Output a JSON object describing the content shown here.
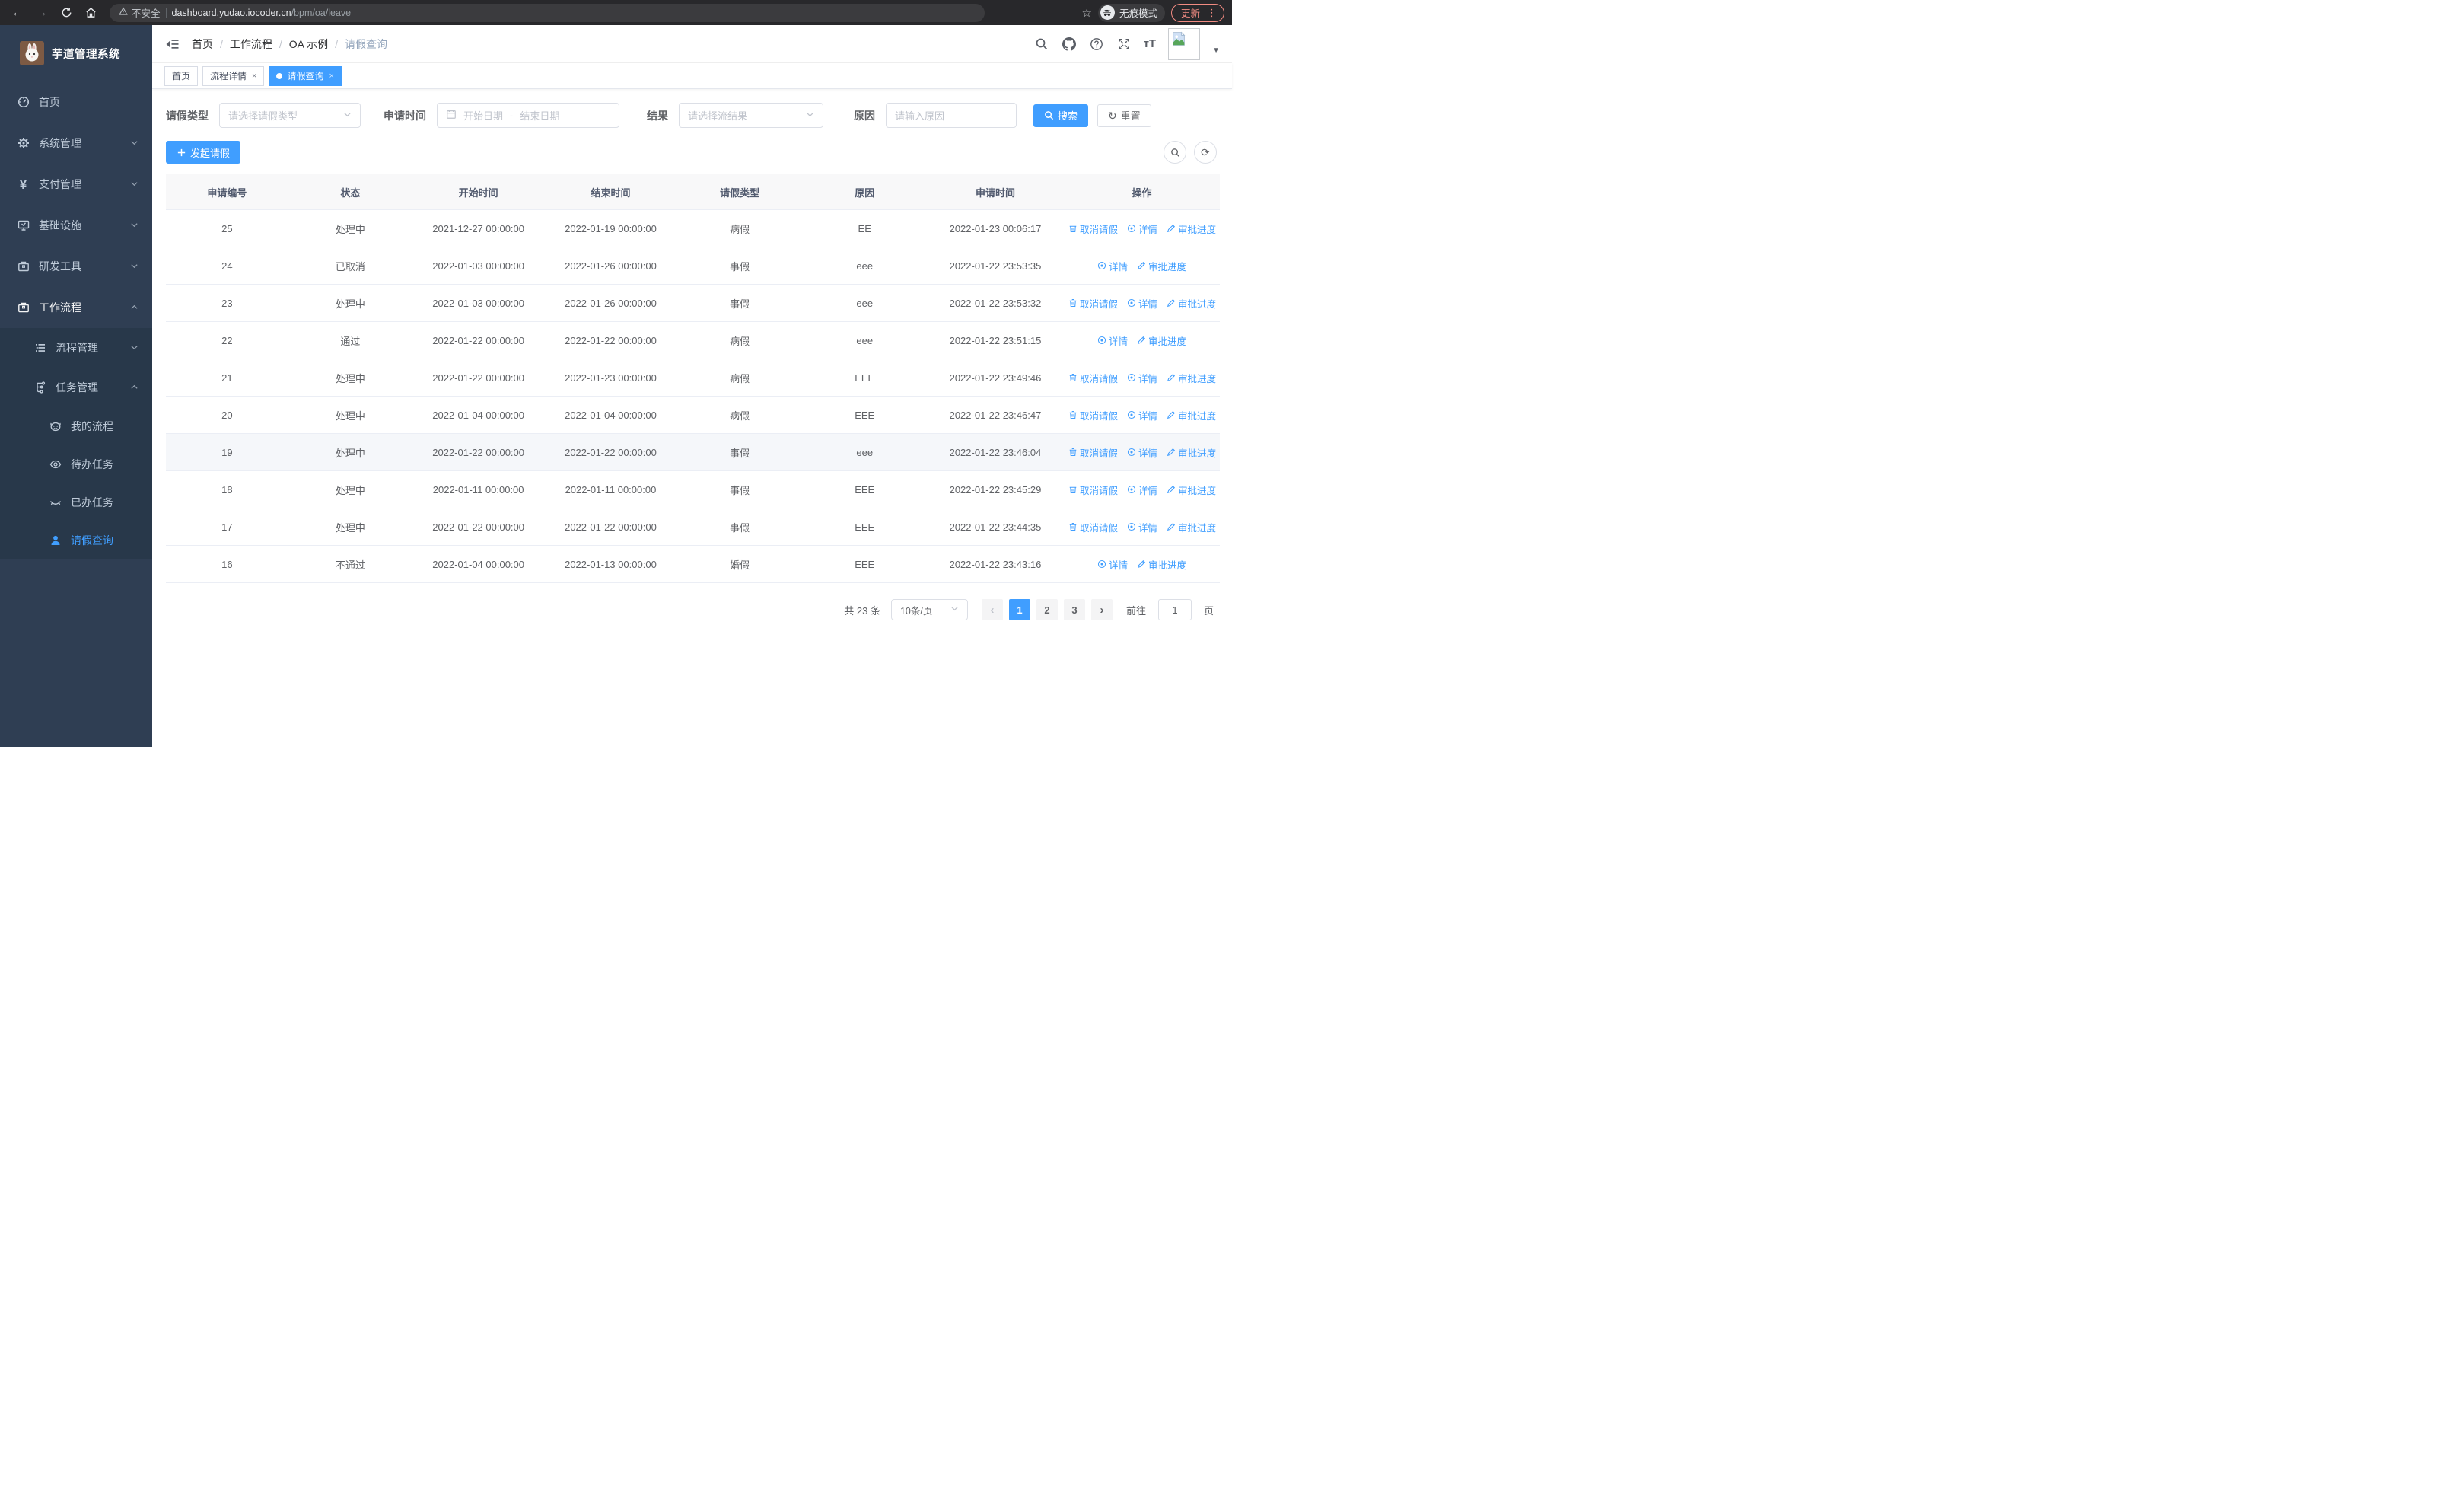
{
  "colors": {
    "accent": "#409eff",
    "sidebar_bg": "#2f3e53",
    "sidebar_submenu_bg": "#28384a",
    "update_pill": "#f28b82"
  },
  "browser": {
    "security_label": "不安全",
    "url_domain": "dashboard.yudao.iocoder.cn",
    "url_path": "/bpm/oa/leave",
    "incognito_label": "无痕模式",
    "update_label": "更新"
  },
  "sidebar": {
    "logo_title": "芋道管理系统",
    "items": [
      {
        "label": "首页",
        "icon": "dashboard-icon",
        "level": 1,
        "expand": null,
        "group": false,
        "active": false,
        "selected": false
      },
      {
        "label": "系统管理",
        "icon": "gear-icon",
        "level": 1,
        "expand": "down",
        "group": false,
        "active": false,
        "selected": false
      },
      {
        "label": "支付管理",
        "icon": "yen-icon",
        "level": 1,
        "expand": "down",
        "group": false,
        "active": false,
        "selected": false
      },
      {
        "label": "基础设施",
        "icon": "monitor-icon",
        "level": 1,
        "expand": "down",
        "group": false,
        "active": false,
        "selected": false
      },
      {
        "label": "研发工具",
        "icon": "toolbox-icon",
        "level": 1,
        "expand": "down",
        "group": false,
        "active": false,
        "selected": false
      },
      {
        "label": "工作流程",
        "icon": "briefcase-icon",
        "level": 1,
        "expand": "up",
        "group": false,
        "active": true,
        "selected": false
      },
      {
        "label": "流程管理",
        "icon": "list-icon",
        "level": 2,
        "expand": "down",
        "group": true,
        "active": false,
        "selected": false
      },
      {
        "label": "任务管理",
        "icon": "flow-icon",
        "level": 2,
        "expand": "up",
        "group": true,
        "active": false,
        "selected": false
      },
      {
        "label": "我的流程",
        "icon": "robot-icon",
        "level": 3,
        "expand": null,
        "group": true,
        "active": false,
        "selected": false
      },
      {
        "label": "待办任务",
        "icon": "eye-open-icon",
        "level": 3,
        "expand": null,
        "group": true,
        "active": false,
        "selected": false
      },
      {
        "label": "已办任务",
        "icon": "eye-closed-icon",
        "level": 3,
        "expand": null,
        "group": true,
        "active": false,
        "selected": false
      },
      {
        "label": "请假查询",
        "icon": "user-icon",
        "level": 3,
        "expand": null,
        "group": true,
        "active": false,
        "selected": true
      }
    ]
  },
  "breadcrumb": {
    "items": [
      "首页",
      "工作流程",
      "OA 示例",
      "请假查询"
    ]
  },
  "tabs": [
    {
      "label": "首页",
      "closable": false,
      "active": false
    },
    {
      "label": "流程详情",
      "closable": true,
      "active": false
    },
    {
      "label": "请假查询",
      "closable": true,
      "active": true
    }
  ],
  "filters": {
    "leave_type_label": "请假类型",
    "leave_type_placeholder": "请选择请假类型",
    "apply_time_label": "申请时间",
    "start_date_placeholder": "开始日期",
    "range_separator": "-",
    "end_date_placeholder": "结束日期",
    "result_label": "结果",
    "result_placeholder": "请选择流结果",
    "reason_label": "原因",
    "reason_placeholder": "请输入原因",
    "search_label": "搜索",
    "reset_label": "重置"
  },
  "toolbar": {
    "create_label": "发起请假"
  },
  "table": {
    "columns": [
      "申请编号",
      "状态",
      "开始时间",
      "结束时间",
      "请假类型",
      "原因",
      "申请时间",
      "操作"
    ],
    "action_labels": {
      "cancel": "取消请假",
      "detail": "详情",
      "progress": "审批进度"
    },
    "rows": [
      {
        "id": "25",
        "status": "处理中",
        "start": "2021-12-27 00:00:00",
        "end": "2022-01-19 00:00:00",
        "type": "病假",
        "reason": "EE",
        "apply_time": "2022-01-23 00:06:17",
        "actions": [
          "cancel",
          "detail",
          "progress"
        ],
        "highlight": false
      },
      {
        "id": "24",
        "status": "已取消",
        "start": "2022-01-03 00:00:00",
        "end": "2022-01-26 00:00:00",
        "type": "事假",
        "reason": "eee",
        "apply_time": "2022-01-22 23:53:35",
        "actions": [
          "detail",
          "progress"
        ],
        "highlight": false
      },
      {
        "id": "23",
        "status": "处理中",
        "start": "2022-01-03 00:00:00",
        "end": "2022-01-26 00:00:00",
        "type": "事假",
        "reason": "eee",
        "apply_time": "2022-01-22 23:53:32",
        "actions": [
          "cancel",
          "detail",
          "progress"
        ],
        "highlight": false
      },
      {
        "id": "22",
        "status": "通过",
        "start": "2022-01-22 00:00:00",
        "end": "2022-01-22 00:00:00",
        "type": "病假",
        "reason": "eee",
        "apply_time": "2022-01-22 23:51:15",
        "actions": [
          "detail",
          "progress"
        ],
        "highlight": false
      },
      {
        "id": "21",
        "status": "处理中",
        "start": "2022-01-22 00:00:00",
        "end": "2022-01-23 00:00:00",
        "type": "病假",
        "reason": "EEE",
        "apply_time": "2022-01-22 23:49:46",
        "actions": [
          "cancel",
          "detail",
          "progress"
        ],
        "highlight": false
      },
      {
        "id": "20",
        "status": "处理中",
        "start": "2022-01-04 00:00:00",
        "end": "2022-01-04 00:00:00",
        "type": "病假",
        "reason": "EEE",
        "apply_time": "2022-01-22 23:46:47",
        "actions": [
          "cancel",
          "detail",
          "progress"
        ],
        "highlight": false
      },
      {
        "id": "19",
        "status": "处理中",
        "start": "2022-01-22 00:00:00",
        "end": "2022-01-22 00:00:00",
        "type": "事假",
        "reason": "eee",
        "apply_time": "2022-01-22 23:46:04",
        "actions": [
          "cancel",
          "detail",
          "progress"
        ],
        "highlight": true
      },
      {
        "id": "18",
        "status": "处理中",
        "start": "2022-01-11 00:00:00",
        "end": "2022-01-11 00:00:00",
        "type": "事假",
        "reason": "EEE",
        "apply_time": "2022-01-22 23:45:29",
        "actions": [
          "cancel",
          "detail",
          "progress"
        ],
        "highlight": false
      },
      {
        "id": "17",
        "status": "处理中",
        "start": "2022-01-22 00:00:00",
        "end": "2022-01-22 00:00:00",
        "type": "事假",
        "reason": "EEE",
        "apply_time": "2022-01-22 23:44:35",
        "actions": [
          "cancel",
          "detail",
          "progress"
        ],
        "highlight": false
      },
      {
        "id": "16",
        "status": "不通过",
        "start": "2022-01-04 00:00:00",
        "end": "2022-01-13 00:00:00",
        "type": "婚假",
        "reason": "EEE",
        "apply_time": "2022-01-22 23:43:16",
        "actions": [
          "detail",
          "progress"
        ],
        "highlight": false
      }
    ]
  },
  "pagination": {
    "total_label": "共 23 条",
    "page_size_value": "10条/页",
    "pages": [
      "1",
      "2",
      "3"
    ],
    "active_page": "1",
    "goto_label": "前往",
    "goto_value": "1",
    "goto_unit": "页"
  }
}
